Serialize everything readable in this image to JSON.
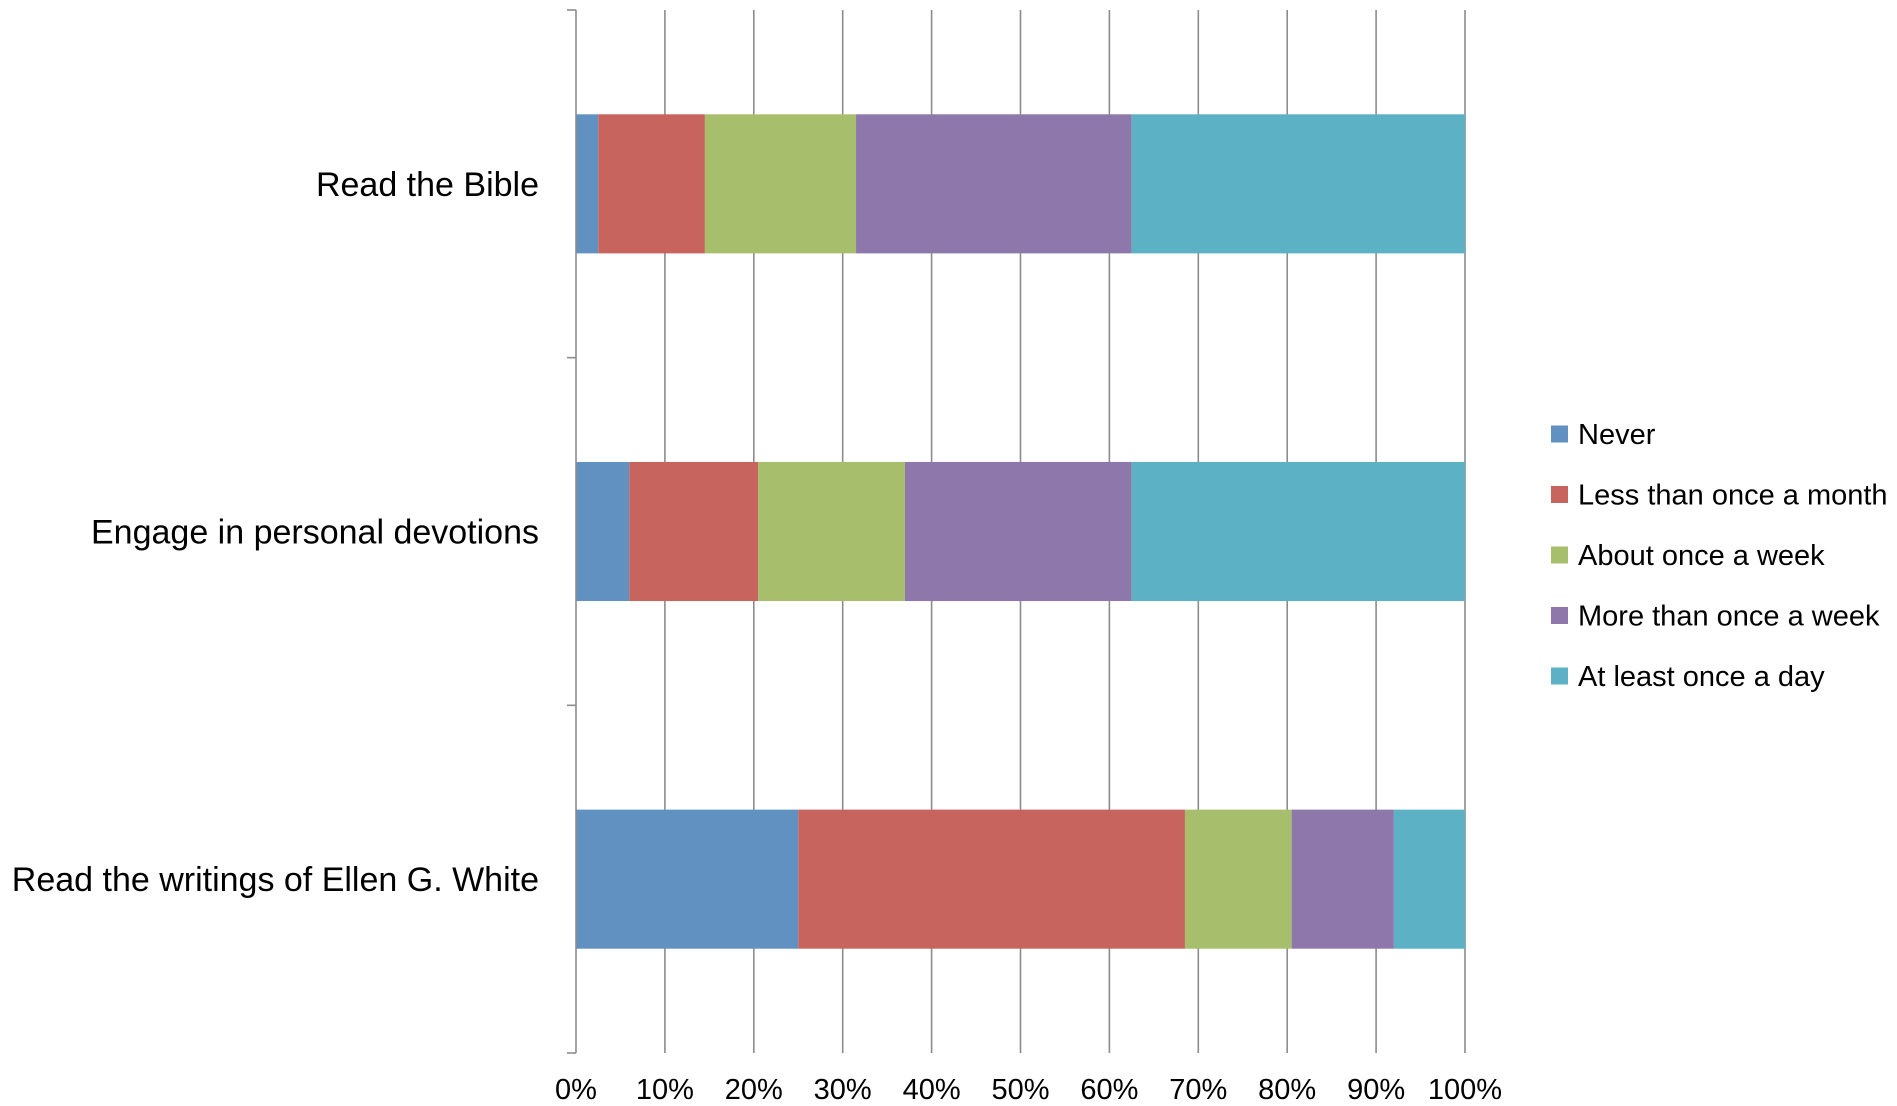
{
  "chart_data": {
    "type": "bar",
    "orientation": "horizontal",
    "stacked": "percent",
    "categories": [
      "Read the Bible",
      "Engage in personal devotions",
      "Read the writings of Ellen G. White"
    ],
    "series": [
      {
        "name": "Never",
        "color": "#6191c1",
        "values": [
          2.5,
          6,
          25
        ]
      },
      {
        "name": "Less than once a month",
        "color": "#c7645d",
        "values": [
          12,
          14.5,
          43.5
        ]
      },
      {
        "name": "About once a week",
        "color": "#a7be6c",
        "values": [
          17,
          16.5,
          12
        ]
      },
      {
        "name": "More than once a week",
        "color": "#8e78ab",
        "values": [
          31,
          25.5,
          11.5
        ]
      },
      {
        "name": "At least once a day",
        "color": "#5cb1c5",
        "values": [
          37.5,
          37.5,
          8
        ]
      }
    ],
    "x_ticks": [
      "0%",
      "10%",
      "20%",
      "30%",
      "40%",
      "50%",
      "60%",
      "70%",
      "80%",
      "90%",
      "100%"
    ],
    "xlim": [
      0,
      100
    ],
    "grid": "vertical",
    "legend": "right",
    "title": "",
    "xlabel": "",
    "ylabel": ""
  }
}
